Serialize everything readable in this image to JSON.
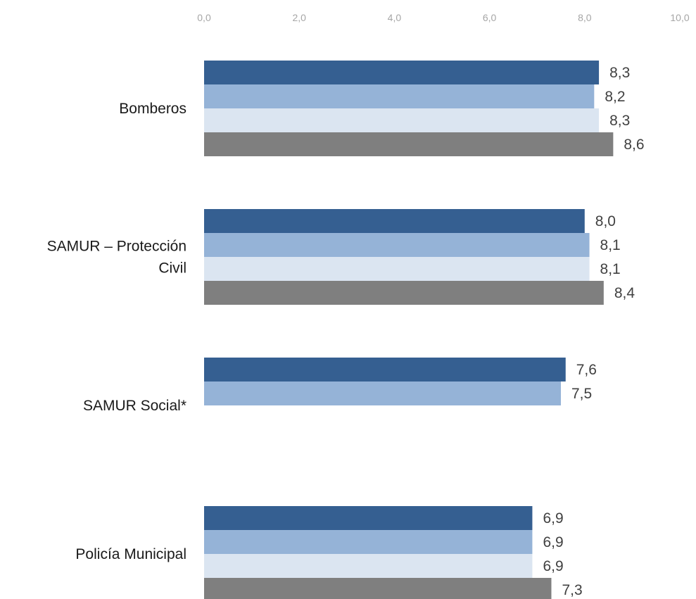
{
  "chart_data": {
    "type": "bar",
    "orientation": "horizontal",
    "xlim": [
      0,
      10
    ],
    "x_ticks": [
      "0,0",
      "2,0",
      "4,0",
      "6,0",
      "8,0",
      "10,0"
    ],
    "x_axis_position": "top",
    "grid": false,
    "legend": "none",
    "categories": [
      {
        "label_lines": [
          "Bomberos"
        ]
      },
      {
        "label_lines": [
          "SAMUR – Protección",
          "Civil"
        ]
      },
      {
        "label_lines": [
          "SAMUR Social*"
        ]
      },
      {
        "label_lines": [
          "Policía Municipal"
        ]
      }
    ],
    "series": [
      {
        "color": "#355f91",
        "values": [
          8.3,
          8.0,
          7.6,
          6.9
        ],
        "labels": [
          "8,3",
          "8,0",
          "7,6",
          "6,9"
        ]
      },
      {
        "color": "#95b3d7",
        "values": [
          8.2,
          8.1,
          7.5,
          6.9
        ],
        "labels": [
          "8,2",
          "8,1",
          "7,5",
          "6,9"
        ]
      },
      {
        "color": "#dbe5f1",
        "values": [
          8.3,
          8.1,
          null,
          6.9
        ],
        "labels": [
          "8,3",
          "8,1",
          "",
          "6,9"
        ]
      },
      {
        "color": "#7f7f7f",
        "values": [
          8.6,
          8.4,
          null,
          7.3
        ],
        "labels": [
          "8,6",
          "8,4",
          "",
          "7,3"
        ]
      }
    ]
  }
}
